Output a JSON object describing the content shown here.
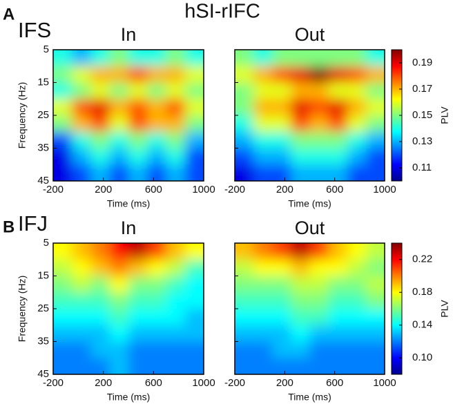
{
  "figure": {
    "title": "hSI-rIFC",
    "rows": [
      {
        "letter": "A",
        "label": "IFS"
      },
      {
        "letter": "B",
        "label": "IFJ"
      }
    ]
  },
  "chart_data": [
    {
      "type": "heatmap",
      "title": "In",
      "xlabel": "Time (ms)",
      "ylabel": "Frequency (Hz)",
      "colormap": "jet",
      "x": [
        -125,
        25,
        175,
        325,
        475,
        625,
        775,
        925
      ],
      "y": [
        7.5,
        12.5,
        17.5,
        22.5,
        27.5,
        32.5,
        37.5,
        42.5
      ],
      "xlim": [
        -200,
        1000
      ],
      "xticks": [
        -200,
        200,
        600,
        1000
      ],
      "ylim": [
        45,
        5
      ],
      "yticks": [
        5,
        15,
        25,
        35,
        45
      ],
      "zlim": [
        0.1,
        0.2
      ],
      "z": [
        [
          0.14,
          0.13,
          0.14,
          0.15,
          0.14,
          0.14,
          0.15,
          0.14
        ],
        [
          0.15,
          0.16,
          0.17,
          0.17,
          0.18,
          0.17,
          0.17,
          0.16
        ],
        [
          0.14,
          0.15,
          0.16,
          0.15,
          0.16,
          0.15,
          0.16,
          0.15
        ],
        [
          0.16,
          0.18,
          0.19,
          0.17,
          0.18,
          0.17,
          0.18,
          0.16
        ],
        [
          0.15,
          0.17,
          0.18,
          0.16,
          0.18,
          0.17,
          0.17,
          0.15
        ],
        [
          0.12,
          0.14,
          0.15,
          0.14,
          0.15,
          0.14,
          0.15,
          0.13
        ],
        [
          0.11,
          0.13,
          0.14,
          0.13,
          0.14,
          0.13,
          0.14,
          0.12
        ],
        [
          0.11,
          0.12,
          0.13,
          0.12,
          0.13,
          0.12,
          0.13,
          0.12
        ]
      ]
    },
    {
      "type": "heatmap",
      "title": "Out",
      "xlabel": "Time (ms)",
      "colormap": "jet",
      "x": [
        -125,
        25,
        175,
        325,
        475,
        625,
        775,
        925
      ],
      "y": [
        7.5,
        12.5,
        17.5,
        22.5,
        27.5,
        32.5,
        37.5,
        42.5
      ],
      "xlim": [
        -200,
        1000
      ],
      "xticks": [
        -200,
        200,
        600,
        1000
      ],
      "ylim": [
        45,
        5
      ],
      "yticks": [
        5,
        15,
        25,
        35,
        45
      ],
      "zlim": [
        0.1,
        0.2
      ],
      "colorbar": {
        "label": "PLV",
        "ticks": [
          0.11,
          0.13,
          0.15,
          0.17,
          0.19
        ]
      },
      "z": [
        [
          0.15,
          0.14,
          0.15,
          0.15,
          0.15,
          0.15,
          0.15,
          0.14
        ],
        [
          0.16,
          0.17,
          0.18,
          0.19,
          0.2,
          0.19,
          0.18,
          0.17
        ],
        [
          0.15,
          0.16,
          0.16,
          0.17,
          0.17,
          0.16,
          0.16,
          0.15
        ],
        [
          0.15,
          0.17,
          0.17,
          0.19,
          0.18,
          0.19,
          0.17,
          0.16
        ],
        [
          0.14,
          0.16,
          0.16,
          0.18,
          0.17,
          0.18,
          0.16,
          0.15
        ],
        [
          0.13,
          0.14,
          0.14,
          0.15,
          0.15,
          0.15,
          0.14,
          0.13
        ],
        [
          0.12,
          0.13,
          0.13,
          0.14,
          0.14,
          0.14,
          0.13,
          0.12
        ],
        [
          0.11,
          0.12,
          0.12,
          0.13,
          0.13,
          0.13,
          0.12,
          0.12
        ]
      ]
    },
    {
      "type": "heatmap",
      "title": "In",
      "xlabel": "Time (ms)",
      "ylabel": "Frequency (Hz)",
      "colormap": "jet",
      "x": [
        -125,
        25,
        175,
        325,
        475,
        625,
        775,
        925
      ],
      "y": [
        7.5,
        12.5,
        17.5,
        22.5,
        27.5,
        32.5,
        37.5,
        42.5
      ],
      "xlim": [
        -200,
        1000
      ],
      "xticks": [
        -200,
        200,
        600,
        1000
      ],
      "ylim": [
        45,
        5
      ],
      "yticks": [
        5,
        15,
        25,
        35,
        45
      ],
      "zlim": [
        0.08,
        0.24
      ],
      "z": [
        [
          0.18,
          0.19,
          0.2,
          0.22,
          0.23,
          0.21,
          0.19,
          0.18
        ],
        [
          0.17,
          0.18,
          0.19,
          0.2,
          0.19,
          0.18,
          0.17,
          0.15
        ],
        [
          0.16,
          0.17,
          0.16,
          0.18,
          0.16,
          0.16,
          0.15,
          0.14
        ],
        [
          0.15,
          0.15,
          0.15,
          0.16,
          0.15,
          0.15,
          0.14,
          0.14
        ],
        [
          0.14,
          0.14,
          0.14,
          0.15,
          0.14,
          0.14,
          0.14,
          0.13
        ],
        [
          0.13,
          0.13,
          0.13,
          0.14,
          0.13,
          0.13,
          0.13,
          0.13
        ],
        [
          0.12,
          0.12,
          0.13,
          0.13,
          0.12,
          0.12,
          0.12,
          0.12
        ],
        [
          0.12,
          0.12,
          0.12,
          0.13,
          0.12,
          0.12,
          0.12,
          0.12
        ]
      ]
    },
    {
      "type": "heatmap",
      "title": "Out",
      "xlabel": "Time (ms)",
      "colormap": "jet",
      "x": [
        -125,
        25,
        175,
        325,
        475,
        625,
        775,
        925
      ],
      "y": [
        7.5,
        12.5,
        17.5,
        22.5,
        27.5,
        32.5,
        37.5,
        42.5
      ],
      "xlim": [
        -200,
        1000
      ],
      "xticks": [
        -200,
        200,
        600,
        1000
      ],
      "ylim": [
        45,
        5
      ],
      "yticks": [
        5,
        15,
        25,
        35,
        45
      ],
      "zlim": [
        0.08,
        0.24
      ],
      "colorbar": {
        "label": "PLV",
        "ticks": [
          {
            "value": 0.1,
            "label": "0.10"
          },
          0.14,
          0.18,
          0.22
        ]
      },
      "z": [
        [
          0.19,
          0.2,
          0.21,
          0.23,
          0.21,
          0.19,
          0.18,
          0.17
        ],
        [
          0.17,
          0.18,
          0.18,
          0.19,
          0.18,
          0.18,
          0.17,
          0.16
        ],
        [
          0.16,
          0.16,
          0.16,
          0.17,
          0.17,
          0.16,
          0.16,
          0.17
        ],
        [
          0.15,
          0.15,
          0.15,
          0.16,
          0.16,
          0.15,
          0.15,
          0.16
        ],
        [
          0.14,
          0.14,
          0.14,
          0.15,
          0.15,
          0.14,
          0.14,
          0.14
        ],
        [
          0.13,
          0.13,
          0.13,
          0.14,
          0.13,
          0.13,
          0.13,
          0.13
        ],
        [
          0.12,
          0.12,
          0.13,
          0.13,
          0.12,
          0.12,
          0.12,
          0.12
        ],
        [
          0.12,
          0.12,
          0.12,
          0.12,
          0.12,
          0.12,
          0.12,
          0.12
        ]
      ]
    }
  ]
}
